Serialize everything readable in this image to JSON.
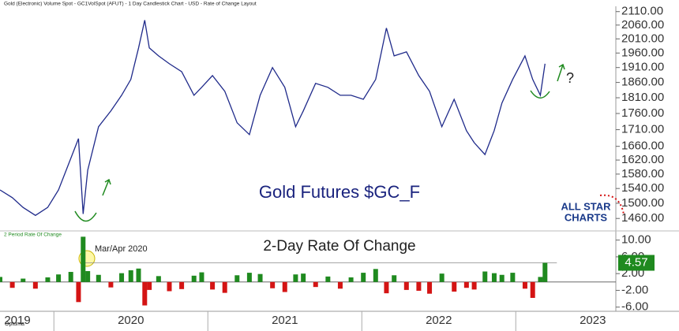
{
  "header": "Gold (Electronic) Volume Spot - GC1VolSpot (AFUT) - 1 Day Candlestick Chart - USD - Rate of Change Layout",
  "logo": {
    "line1": "ALL STAR",
    "line2": "CHARTS"
  },
  "footer": "Optuma",
  "chart_data": [
    {
      "type": "line",
      "title": "Gold Futures $GC_F",
      "annotations": [
        "?"
      ],
      "log": true,
      "grid": false,
      "xlim": [
        2019.65,
        2023.65
      ],
      "ylim": [
        1430,
        2130
      ],
      "yticks": [
        {
          "value": 2110,
          "label": "2110.00"
        },
        {
          "value": 2060,
          "label": "2060.00"
        },
        {
          "value": 2010,
          "label": "2010.00"
        },
        {
          "value": 1960,
          "label": "1960.00"
        },
        {
          "value": 1910,
          "label": "1910.00"
        },
        {
          "value": 1860,
          "label": "1860.00"
        },
        {
          "value": 1810,
          "label": "1810.00"
        },
        {
          "value": 1760,
          "label": "1760.00"
        },
        {
          "value": 1710,
          "label": "1710.00"
        },
        {
          "value": 1660,
          "label": "1660.00"
        },
        {
          "value": 1620,
          "label": "1620.00"
        },
        {
          "value": 1580,
          "label": "1580.00"
        },
        {
          "value": 1540,
          "label": "1540.00"
        },
        {
          "value": 1500,
          "label": "1500.00"
        },
        {
          "value": 1460,
          "label": "1460.00"
        }
      ],
      "x": [
        2019.65,
        2019.73,
        2019.8,
        2019.88,
        2019.96,
        2020.03,
        2020.11,
        2020.16,
        2020.19,
        2020.22,
        2020.29,
        2020.37,
        2020.44,
        2020.5,
        2020.55,
        2020.59,
        2020.62,
        2020.68,
        2020.75,
        2020.83,
        2020.91,
        2020.96,
        2021.03,
        2021.11,
        2021.19,
        2021.27,
        2021.34,
        2021.42,
        2021.5,
        2021.57,
        2021.62,
        2021.7,
        2021.78,
        2021.86,
        2021.93,
        2022.01,
        2022.09,
        2022.16,
        2022.21,
        2022.29,
        2022.37,
        2022.44,
        2022.52,
        2022.6,
        2022.68,
        2022.73,
        2022.8,
        2022.86,
        2022.91,
        2022.98,
        2023.06,
        2023.11,
        2023.16,
        2023.19
      ],
      "series": [
        {
          "name": "GC1VolSpot",
          "color": "#1f2a8a",
          "values": [
            1536,
            1515,
            1489,
            1468,
            1489,
            1536,
            1625,
            1683,
            1472,
            1591,
            1719,
            1768,
            1818,
            1870,
            1978,
            2078,
            1978,
            1950,
            1923,
            1896,
            1818,
            1844,
            1883,
            1831,
            1731,
            1695,
            1818,
            1910,
            1844,
            1719,
            1768,
            1857,
            1844,
            1818,
            1818,
            1805,
            1870,
            2049,
            1950,
            1964,
            1883,
            1831,
            1719,
            1805,
            1707,
            1671,
            1636,
            1707,
            1793,
            1870,
            1950,
            1870,
            1818,
            1923
          ]
        }
      ],
      "xticks": [
        2019,
        2020,
        2021,
        2022,
        2023
      ]
    },
    {
      "type": "bar",
      "title": "2-Day Rate Of Change",
      "subtitle": "2 Period Rate Of Change",
      "annotations": [
        "Mar/Apr 2020"
      ],
      "xlim": [
        2019.65,
        2023.65
      ],
      "ylim": [
        -7,
        12
      ],
      "yticks": [
        {
          "value": 10,
          "label": "10.00"
        },
        {
          "value": 6,
          "label": "6.00"
        },
        {
          "value": 2,
          "label": "2.00"
        },
        {
          "value": -2,
          "label": "-2.00"
        },
        {
          "value": -6,
          "label": "-6.00"
        }
      ],
      "up_color": "#1f8a1f",
      "down_color": "#d41414",
      "x": [
        2019.65,
        2019.73,
        2019.8,
        2019.88,
        2019.96,
        2020.03,
        2020.11,
        2020.16,
        2020.19,
        2020.22,
        2020.29,
        2020.37,
        2020.44,
        2020.5,
        2020.55,
        2020.59,
        2020.62,
        2020.68,
        2020.75,
        2020.83,
        2020.91,
        2020.96,
        2021.03,
        2021.11,
        2021.19,
        2021.27,
        2021.34,
        2021.42,
        2021.5,
        2021.57,
        2021.62,
        2021.7,
        2021.78,
        2021.86,
        2021.93,
        2022.01,
        2022.09,
        2022.16,
        2022.21,
        2022.29,
        2022.37,
        2022.44,
        2022.52,
        2022.6,
        2022.68,
        2022.73,
        2022.8,
        2022.86,
        2022.91,
        2022.98,
        2023.06,
        2023.11,
        2023.16,
        2023.19
      ],
      "values": [
        1.2,
        -1.4,
        0.8,
        -1.6,
        1.1,
        1.8,
        2.4,
        -4.8,
        10.8,
        2.6,
        1.7,
        -1.3,
        2.1,
        2.8,
        3.2,
        -5.6,
        -1.9,
        1.4,
        -2.2,
        -1.7,
        1.5,
        2.3,
        -1.8,
        -2.6,
        1.6,
        2.2,
        1.9,
        -1.5,
        -2.4,
        1.8,
        2.0,
        -1.2,
        1.3,
        -1.6,
        1.1,
        2.2,
        3.1,
        -2.7,
        1.6,
        -1.9,
        -2.1,
        -2.8,
        2.0,
        -2.3,
        -1.4,
        -1.8,
        2.5,
        2.1,
        1.7,
        2.2,
        -1.6,
        -3.8,
        1.2,
        4.57
      ]
    }
  ]
}
